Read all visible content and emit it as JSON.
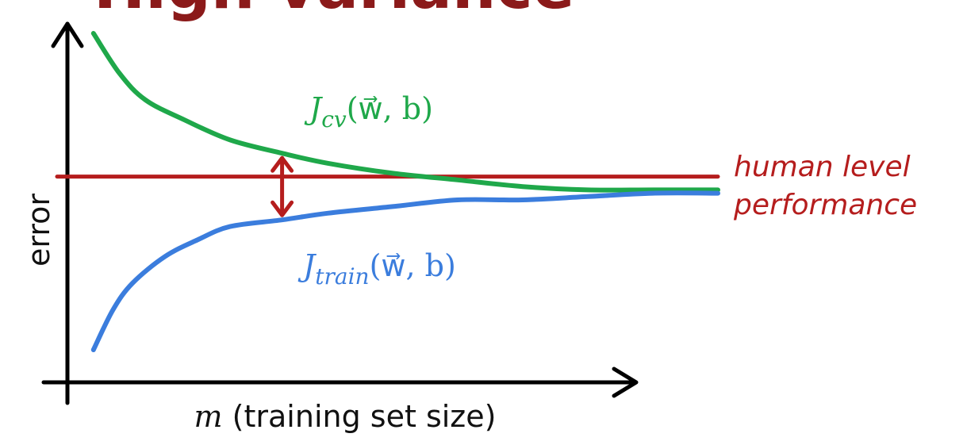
{
  "title_fragment": "High variance",
  "chart_data": {
    "type": "line",
    "title": "",
    "xlabel_var": "m",
    "xlabel_rest": " (training set size)",
    "ylabel": "error",
    "xlim": [
      0,
      1
    ],
    "ylim": [
      0,
      1
    ],
    "grid": false,
    "series": [
      {
        "label_J": "J",
        "label_sub": "cv",
        "label_args": "(w⃗, b)",
        "color": "#1fa84a",
        "x": [
          0.04,
          0.08,
          0.12,
          0.18,
          0.25,
          0.33,
          0.4,
          0.5,
          0.6,
          0.7,
          0.8,
          0.9,
          1.0
        ],
        "y": [
          1.0,
          0.88,
          0.8,
          0.74,
          0.68,
          0.64,
          0.61,
          0.58,
          0.56,
          0.54,
          0.53,
          0.53,
          0.53
        ]
      },
      {
        "label_J": "J",
        "label_sub": "train",
        "label_args": "(w⃗, b)",
        "color": "#3b7ddd",
        "x": [
          0.04,
          0.07,
          0.1,
          0.15,
          0.2,
          0.25,
          0.33,
          0.4,
          0.5,
          0.6,
          0.7,
          0.8,
          0.9,
          1.0
        ],
        "y": [
          0.05,
          0.17,
          0.25,
          0.33,
          0.38,
          0.42,
          0.44,
          0.46,
          0.48,
          0.5,
          0.5,
          0.51,
          0.52,
          0.52
        ]
      }
    ],
    "reference_line": {
      "label_line1": "human level",
      "label_line2": "performance",
      "color": "#b51d1d",
      "y": 0.57
    },
    "gap_marker": {
      "color": "#b51d1d",
      "x": 0.33,
      "y_top": 0.64,
      "y_bottom": 0.44
    }
  }
}
